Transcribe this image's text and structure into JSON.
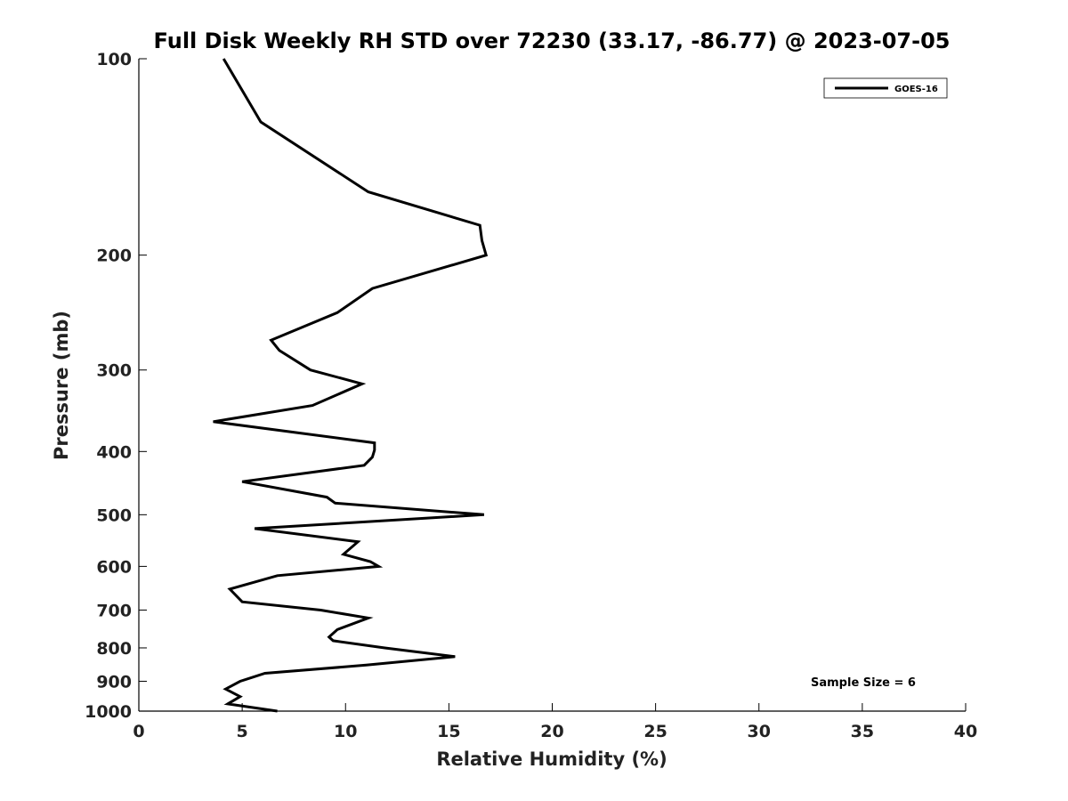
{
  "chart_data": {
    "type": "line",
    "title": "Full Disk Weekly RH STD over 72230 (33.17, -86.77) @ 2023-07-05",
    "xlabel": "Relative Humidity (%)",
    "ylabel": "Pressure (mb)",
    "xlim": [
      0,
      40
    ],
    "ylim": [
      100,
      1000
    ],
    "y_scale": "log",
    "y_reversed": true,
    "x_ticks": [
      "0",
      "5",
      "10",
      "15",
      "20",
      "25",
      "30",
      "35",
      "40"
    ],
    "y_ticks": [
      "100",
      "200",
      "300",
      "400",
      "500",
      "600",
      "700",
      "800",
      "900",
      "1000"
    ],
    "grid": false,
    "legend_position": "top-right",
    "series": [
      {
        "name": "GOES-16",
        "color": "#000000",
        "points": [
          [
            4.1,
            100
          ],
          [
            5.9,
            125
          ],
          [
            11.1,
            160
          ],
          [
            16.5,
            180
          ],
          [
            16.6,
            190
          ],
          [
            16.8,
            200
          ],
          [
            11.3,
            225
          ],
          [
            9.6,
            245
          ],
          [
            6.4,
            270
          ],
          [
            6.8,
            280
          ],
          [
            8.3,
            300
          ],
          [
            10.8,
            315
          ],
          [
            8.4,
            340
          ],
          [
            3.6,
            360
          ],
          [
            11.4,
            388
          ],
          [
            11.4,
            398
          ],
          [
            11.3,
            408
          ],
          [
            10.9,
            420
          ],
          [
            5.0,
            445
          ],
          [
            9.1,
            470
          ],
          [
            9.5,
            480
          ],
          [
            16.7,
            500
          ],
          [
            5.6,
            525
          ],
          [
            10.6,
            550
          ],
          [
            9.9,
            575
          ],
          [
            11.2,
            590
          ],
          [
            11.6,
            600
          ],
          [
            6.7,
            620
          ],
          [
            4.4,
            650
          ],
          [
            5.0,
            680
          ],
          [
            8.8,
            700
          ],
          [
            11.1,
            720
          ],
          [
            9.6,
            750
          ],
          [
            9.2,
            770
          ],
          [
            9.4,
            780
          ],
          [
            11.9,
            800
          ],
          [
            15.3,
            825
          ],
          [
            11.0,
            850
          ],
          [
            6.1,
            875
          ],
          [
            4.9,
            900
          ],
          [
            4.2,
            925
          ],
          [
            4.9,
            950
          ],
          [
            4.3,
            975
          ],
          [
            6.7,
            1000
          ]
        ]
      }
    ],
    "annotation": "Sample Size = 6"
  }
}
